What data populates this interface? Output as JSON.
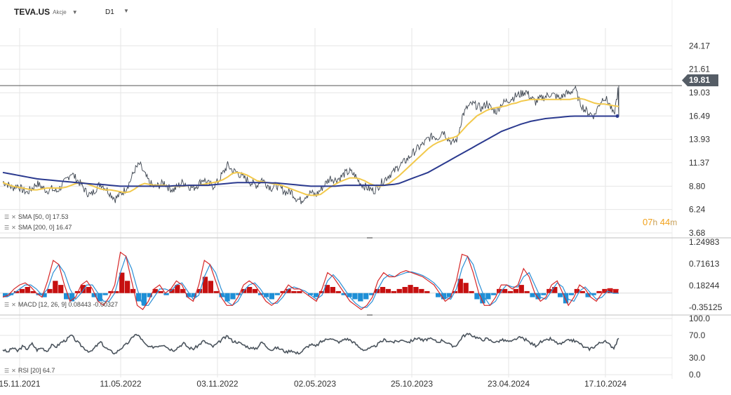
{
  "header": {
    "symbol": "TEVA.US",
    "asset_type": "Akcje",
    "timeframe": "D1",
    "symbol_dropdown_icon": "caret-down-icon",
    "timeframe_dropdown_icon": "caret-down-icon"
  },
  "current_price": "19.81",
  "countdown": {
    "hours": "07",
    "h": "h",
    "minutes": "44",
    "m": "m"
  },
  "legends": {
    "sma50": "SMA [50, 0] 17.53",
    "sma200": "SMA [200, 0] 16.47",
    "macd": "MACD [12, 26, 9] 0.08443 -0.00327",
    "rsi": "RSI [20] 64.7"
  },
  "colors": {
    "price": "#3d4550",
    "sma50": "#f2c94c",
    "sma200": "#2b3a8f",
    "macd_line": "#d62728",
    "signal_line": "#2a8fd6",
    "hist_pos": "#c61010",
    "hist_neg": "#1e8fd6",
    "rsi": "#4a535c",
    "grid": "#e6e6e6",
    "tag": "#555d66",
    "timer": "#f2a21b"
  },
  "chart_data": [
    {
      "type": "line",
      "name": "price",
      "x_labels": [
        "15.11.2021",
        "11.05.2022",
        "03.11.2022",
        "02.05.2023",
        "25.10.2023",
        "23.04.2024",
        "17.10.2024"
      ],
      "y_ticks": [
        "24.17",
        "21.61",
        "19.03",
        "16.49",
        "13.93",
        "11.37",
        "8.80",
        "6.24",
        "3.68"
      ],
      "ylim": [
        3.68,
        25.5
      ],
      "last_price": 19.81,
      "series": [
        {
          "name": "close",
          "values": [
            9.3,
            9.0,
            8.6,
            8.9,
            8.4,
            8.1,
            8.6,
            9.1,
            8.7,
            8.3,
            8.5,
            8.2,
            8.8,
            9.5,
            10.3,
            9.6,
            9.0,
            8.2,
            7.8,
            8.5,
            9.1,
            8.6,
            8.0,
            7.4,
            7.9,
            8.4,
            9.3,
            10.6,
            11.2,
            10.1,
            9.2,
            8.7,
            8.9,
            9.2,
            8.6,
            8.4,
            8.9,
            9.3,
            8.8,
            8.6,
            9.0,
            9.6,
            9.1,
            8.8,
            9.3,
            10.2,
            11.1,
            10.5,
            10.3,
            9.8,
            9.5,
            9.1,
            8.9,
            9.6,
            9.0,
            8.6,
            8.9,
            8.5,
            8.1,
            8.2,
            7.5,
            7.2,
            7.8,
            8.1,
            7.8,
            8.4,
            9.1,
            9.7,
            9.5,
            9.7,
            10.2,
            10.4,
            10.0,
            9.2,
            8.8,
            8.5,
            8.3,
            8.9,
            9.5,
            10.0,
            10.4,
            11.0,
            11.4,
            11.9,
            12.5,
            13.0,
            13.4,
            14.0,
            14.3,
            14.1,
            14.9,
            14.1,
            13.5,
            14.0,
            16.5,
            17.4,
            17.8,
            17.6,
            17.3,
            17.9,
            17.2,
            17.0,
            17.8,
            18.1,
            18.4,
            18.7,
            18.9,
            19.2,
            18.5,
            18.0,
            18.4,
            18.6,
            18.9,
            18.7,
            18.4,
            18.9,
            19.0,
            19.6,
            18.0,
            17.2,
            16.8,
            16.5,
            17.8,
            18.6,
            17.9,
            16.5,
            19.81
          ]
        },
        {
          "name": "SMA 50",
          "values": [
            9.2,
            9.0,
            8.8,
            8.7,
            8.6,
            8.5,
            8.4,
            8.4,
            8.5,
            8.6,
            8.6,
            8.6,
            8.6,
            8.7,
            8.9,
            9.1,
            9.2,
            9.1,
            8.9,
            8.7,
            8.5,
            8.4,
            8.4,
            8.3,
            8.2,
            8.1,
            8.2,
            8.5,
            8.9,
            9.1,
            9.0,
            8.9,
            8.9,
            8.9,
            8.8,
            8.8,
            8.8,
            8.8,
            8.9,
            8.9,
            8.9,
            9.0,
            9.1,
            9.2,
            9.3,
            9.5,
            9.8,
            10.2,
            10.3,
            10.2,
            10.0,
            9.7,
            9.4,
            9.3,
            9.2,
            9.1,
            9.0,
            8.9,
            8.7,
            8.5,
            8.3,
            8.1,
            7.9,
            7.8,
            7.8,
            7.9,
            8.3,
            8.7,
            9.0,
            9.3,
            9.5,
            9.7,
            9.7,
            9.6,
            9.4,
            9.1,
            8.9,
            8.8,
            8.9,
            9.1,
            9.5,
            9.9,
            10.4,
            10.9,
            11.4,
            11.9,
            12.4,
            12.9,
            13.3,
            13.6,
            13.8,
            14.0,
            14.1,
            14.3,
            14.9,
            15.5,
            16.0,
            16.5,
            16.8,
            17.1,
            17.3,
            17.4,
            17.5,
            17.6,
            17.8,
            17.9,
            18.1,
            18.2,
            18.3,
            18.3,
            18.3,
            18.3,
            18.3,
            18.3,
            18.3,
            18.3,
            18.3,
            18.4,
            18.4,
            18.3,
            18.1,
            17.9,
            17.8,
            17.8,
            17.7,
            17.6,
            17.53
          ]
        },
        {
          "name": "SMA 200",
          "values": [
            10.3,
            10.2,
            10.1,
            10.0,
            9.9,
            9.8,
            9.7,
            9.6,
            9.55,
            9.5,
            9.45,
            9.4,
            9.35,
            9.3,
            9.25,
            9.2,
            9.15,
            9.1,
            9.05,
            9.0,
            9.0,
            8.95,
            8.9,
            8.85,
            8.8,
            8.8,
            8.8,
            8.8,
            8.8,
            8.8,
            8.8,
            8.8,
            8.8,
            8.8,
            8.8,
            8.85,
            8.85,
            8.85,
            8.9,
            8.9,
            8.9,
            8.9,
            8.9,
            8.95,
            9.0,
            9.05,
            9.1,
            9.15,
            9.2,
            9.2,
            9.2,
            9.2,
            9.2,
            9.2,
            9.2,
            9.15,
            9.15,
            9.1,
            9.05,
            9.0,
            8.95,
            8.9,
            8.85,
            8.8,
            8.8,
            8.8,
            8.8,
            8.8,
            8.8,
            8.85,
            8.9,
            8.9,
            8.9,
            8.9,
            8.9,
            8.9,
            8.9,
            8.9,
            8.9,
            8.95,
            9.0,
            9.1,
            9.3,
            9.5,
            9.7,
            9.9,
            10.1,
            10.3,
            10.6,
            10.9,
            11.2,
            11.5,
            11.8,
            12.1,
            12.4,
            12.7,
            13.0,
            13.3,
            13.6,
            13.9,
            14.2,
            14.5,
            14.8,
            15.0,
            15.2,
            15.4,
            15.6,
            15.75,
            15.9,
            16.0,
            16.1,
            16.2,
            16.25,
            16.3,
            16.35,
            16.4,
            16.45,
            16.47,
            16.47,
            16.47,
            16.47,
            16.47,
            16.47,
            16.47,
            16.47,
            16.47,
            16.47
          ]
        }
      ]
    },
    {
      "type": "bar",
      "name": "MACD",
      "y_ticks": [
        "1.24983",
        "0.71613",
        "0.18244",
        "-0.35125"
      ],
      "ylim": [
        -0.45,
        1.3
      ],
      "series": [
        {
          "name": "histogram",
          "values": [
            -0.1,
            -0.05,
            0.05,
            0.1,
            0.15,
            0.05,
            -0.05,
            -0.1,
            0.1,
            0.3,
            0.2,
            -0.15,
            -0.2,
            0.05,
            0.2,
            0.15,
            -0.1,
            -0.2,
            -0.05,
            0.05,
            0.05,
            0.5,
            0.3,
            0.1,
            -0.2,
            -0.3,
            -0.1,
            0.1,
            0.05,
            -0.05,
            0.1,
            0.2,
            0.1,
            -0.1,
            -0.1,
            0.1,
            0.4,
            0.3,
            0.05,
            -0.1,
            -0.2,
            -0.15,
            -0.05,
            0.1,
            0.15,
            0.1,
            -0.05,
            -0.1,
            -0.15,
            -0.05,
            0.05,
            0.1,
            0.05,
            0.05,
            0.0,
            -0.05,
            -0.1,
            0.05,
            0.2,
            0.15,
            0.05,
            -0.05,
            -0.1,
            -0.15,
            -0.2,
            -0.15,
            -0.05,
            0.1,
            0.15,
            0.1,
            0.05,
            0.1,
            0.15,
            0.2,
            0.15,
            0.1,
            0.05,
            0.0,
            -0.1,
            -0.15,
            -0.1,
            0.05,
            0.35,
            0.25,
            0.05,
            -0.15,
            -0.25,
            -0.15,
            -0.05,
            0.1,
            0.1,
            0.05,
            0.1,
            0.2,
            0.05,
            -0.1,
            -0.15,
            -0.05,
            0.1,
            0.15,
            -0.1,
            -0.25,
            -0.05,
            0.1,
            0.05,
            -0.1,
            -0.05,
            0.05,
            0.1,
            0.12,
            0.1
          ]
        },
        {
          "name": "MACD line",
          "values": [
            -0.1,
            -0.05,
            0.1,
            0.2,
            0.25,
            0.15,
            0.0,
            -0.1,
            0.3,
            0.8,
            0.7,
            0.2,
            -0.2,
            -0.1,
            0.2,
            0.3,
            0.1,
            -0.2,
            -0.3,
            -0.1,
            0.2,
            1.0,
            0.9,
            0.3,
            -0.3,
            -0.4,
            -0.2,
            0.1,
            0.2,
            0.0,
            0.1,
            0.3,
            0.2,
            -0.1,
            -0.2,
            0.2,
            0.8,
            0.7,
            0.3,
            -0.1,
            -0.3,
            -0.3,
            -0.1,
            0.2,
            0.3,
            0.2,
            0.0,
            -0.2,
            -0.3,
            -0.2,
            0.0,
            0.2,
            0.1,
            0.1,
            0.0,
            -0.1,
            -0.2,
            0.1,
            0.5,
            0.4,
            0.2,
            0.0,
            -0.2,
            -0.3,
            -0.4,
            -0.3,
            -0.1,
            0.3,
            0.5,
            0.4,
            0.4,
            0.5,
            0.55,
            0.5,
            0.45,
            0.4,
            0.3,
            0.2,
            0.0,
            -0.2,
            -0.1,
            0.3,
            0.95,
            0.9,
            0.5,
            0.0,
            -0.3,
            -0.3,
            -0.1,
            0.2,
            0.2,
            0.1,
            0.2,
            0.6,
            0.4,
            0.0,
            -0.2,
            -0.1,
            0.2,
            0.3,
            0.0,
            -0.3,
            -0.1,
            0.2,
            0.1,
            -0.1,
            -0.2,
            0.0,
            0.1,
            0.08443,
            0.08443
          ]
        },
        {
          "name": "Signal line",
          "values": [
            -0.05,
            -0.08,
            0.0,
            0.1,
            0.2,
            0.2,
            0.1,
            -0.05,
            0.1,
            0.5,
            0.7,
            0.5,
            0.1,
            -0.15,
            0.0,
            0.2,
            0.2,
            0.0,
            -0.2,
            -0.2,
            0.0,
            0.5,
            0.9,
            0.6,
            0.1,
            -0.3,
            -0.3,
            -0.1,
            0.1,
            0.1,
            0.05,
            0.2,
            0.25,
            0.05,
            -0.15,
            -0.05,
            0.4,
            0.7,
            0.5,
            0.1,
            -0.2,
            -0.3,
            -0.2,
            0.05,
            0.2,
            0.25,
            0.1,
            -0.1,
            -0.25,
            -0.25,
            -0.1,
            0.1,
            0.15,
            0.1,
            0.05,
            -0.05,
            -0.15,
            -0.05,
            0.3,
            0.45,
            0.3,
            0.1,
            -0.1,
            -0.25,
            -0.35,
            -0.35,
            -0.2,
            0.1,
            0.35,
            0.45,
            0.4,
            0.45,
            0.5,
            0.52,
            0.48,
            0.43,
            0.35,
            0.25,
            0.1,
            -0.1,
            -0.15,
            0.1,
            0.6,
            0.9,
            0.7,
            0.25,
            -0.1,
            -0.3,
            -0.2,
            0.05,
            0.2,
            0.15,
            0.15,
            0.4,
            0.5,
            0.2,
            -0.1,
            -0.15,
            0.05,
            0.25,
            0.15,
            -0.15,
            -0.2,
            0.05,
            0.15,
            0.0,
            -0.15,
            -0.1,
            0.05,
            -0.00327,
            -0.00327
          ]
        }
      ]
    },
    {
      "type": "line",
      "name": "RSI",
      "y_ticks": [
        "100.0",
        "70.0",
        "30.0",
        "0.0"
      ],
      "ylim": [
        0,
        100
      ],
      "series": [
        {
          "name": "RSI 20",
          "values": [
            45,
            40,
            48,
            42,
            50,
            46,
            55,
            44,
            48,
            42,
            52,
            50,
            58,
            62,
            70,
            60,
            52,
            45,
            40,
            50,
            58,
            48,
            42,
            38,
            46,
            52,
            60,
            72,
            68,
            55,
            48,
            50,
            52,
            54,
            46,
            44,
            50,
            56,
            48,
            46,
            52,
            60,
            55,
            50,
            56,
            64,
            68,
            60,
            58,
            54,
            50,
            46,
            48,
            58,
            50,
            44,
            48,
            45,
            40,
            44,
            38,
            40,
            48,
            54,
            50,
            58,
            62,
            66,
            60,
            58,
            64,
            62,
            56,
            48,
            44,
            46,
            50,
            56,
            62,
            60,
            58,
            60,
            62,
            58,
            62,
            66,
            60,
            64,
            62,
            58,
            62,
            56,
            50,
            54,
            68,
            72,
            70,
            66,
            62,
            64,
            60,
            58,
            62,
            60,
            58,
            64,
            66,
            62,
            56,
            52,
            58,
            60,
            64,
            58,
            54,
            58,
            62,
            60,
            56,
            48,
            46,
            50,
            56,
            60,
            54,
            48,
            64.7
          ]
        }
      ]
    }
  ]
}
